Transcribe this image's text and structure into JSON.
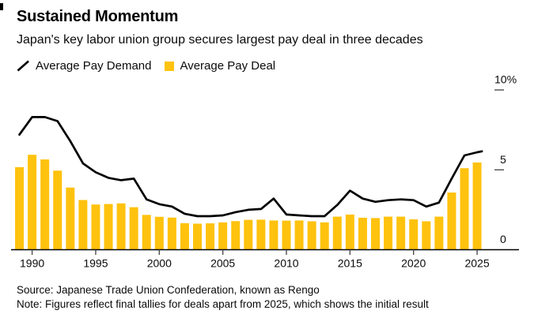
{
  "header": {
    "title": "Sustained Momentum",
    "subtitle": "Japan's key labor union group secures largest pay deal in three decades"
  },
  "legend": [
    {
      "label": "Average Pay Demand",
      "swatch": "line-icon",
      "color": "#000000"
    },
    {
      "label": "Average Pay Deal",
      "swatch": "square-icon",
      "color": "#ffc20e"
    }
  ],
  "chart_data": {
    "type": "bar",
    "title": "Sustained Momentum",
    "subtitle": "Japan's key labor union group secures largest pay deal in three decades",
    "x": [
      1989,
      1990,
      1991,
      1992,
      1993,
      1994,
      1995,
      1996,
      1997,
      1998,
      1999,
      2000,
      2001,
      2002,
      2003,
      2004,
      2005,
      2006,
      2007,
      2008,
      2009,
      2010,
      2011,
      2012,
      2013,
      2014,
      2015,
      2016,
      2017,
      2018,
      2019,
      2020,
      2021,
      2022,
      2023,
      2024,
      2025
    ],
    "series": [
      {
        "name": "Average Pay Demand",
        "type": "line",
        "color": "#000000",
        "values": [
          7.2,
          8.3,
          8.3,
          8.05,
          6.8,
          5.4,
          4.85,
          4.5,
          4.35,
          4.45,
          3.15,
          2.85,
          2.7,
          2.25,
          2.1,
          2.1,
          2.15,
          2.35,
          2.5,
          2.55,
          3.2,
          2.2,
          2.15,
          2.1,
          2.1,
          2.8,
          3.7,
          3.2,
          3.0,
          3.1,
          3.15,
          3.1,
          2.7,
          2.95,
          4.45,
          5.9,
          6.1
        ]
      },
      {
        "name": "Average Pay Deal",
        "type": "bar",
        "color": "#ffc20e",
        "values": [
          5.17,
          5.94,
          5.65,
          4.95,
          3.89,
          3.11,
          2.83,
          2.86,
          2.9,
          2.66,
          2.18,
          2.06,
          2.01,
          1.66,
          1.63,
          1.65,
          1.71,
          1.79,
          1.87,
          1.88,
          1.83,
          1.82,
          1.83,
          1.78,
          1.71,
          2.07,
          2.2,
          2.0,
          1.98,
          2.07,
          2.07,
          1.9,
          1.78,
          2.07,
          3.58,
          5.1,
          5.46
        ]
      }
    ],
    "xlabel": "",
    "ylabel": "",
    "unit": "%",
    "ylim": [
      0,
      10.5
    ],
    "x_ticks": [
      1990,
      1995,
      2000,
      2005,
      2010,
      2015,
      2020,
      2025
    ],
    "y_ticks": [
      {
        "value": 10,
        "label": "10%"
      },
      {
        "value": 5,
        "label": "5"
      },
      {
        "value": 0,
        "label": "0"
      }
    ],
    "grid": false,
    "legend_position": "top-left",
    "value_axis_side": "right",
    "axis_color": "#000000",
    "tick_color": "#4d4d4d",
    "label_color": "#0a0a0a"
  },
  "footer": {
    "source": "Source: Japanese Trade Union Confederation, known as Rengo",
    "note": "Note: Figures reflect final tallies for deals apart from 2025, which shows the initial result"
  }
}
